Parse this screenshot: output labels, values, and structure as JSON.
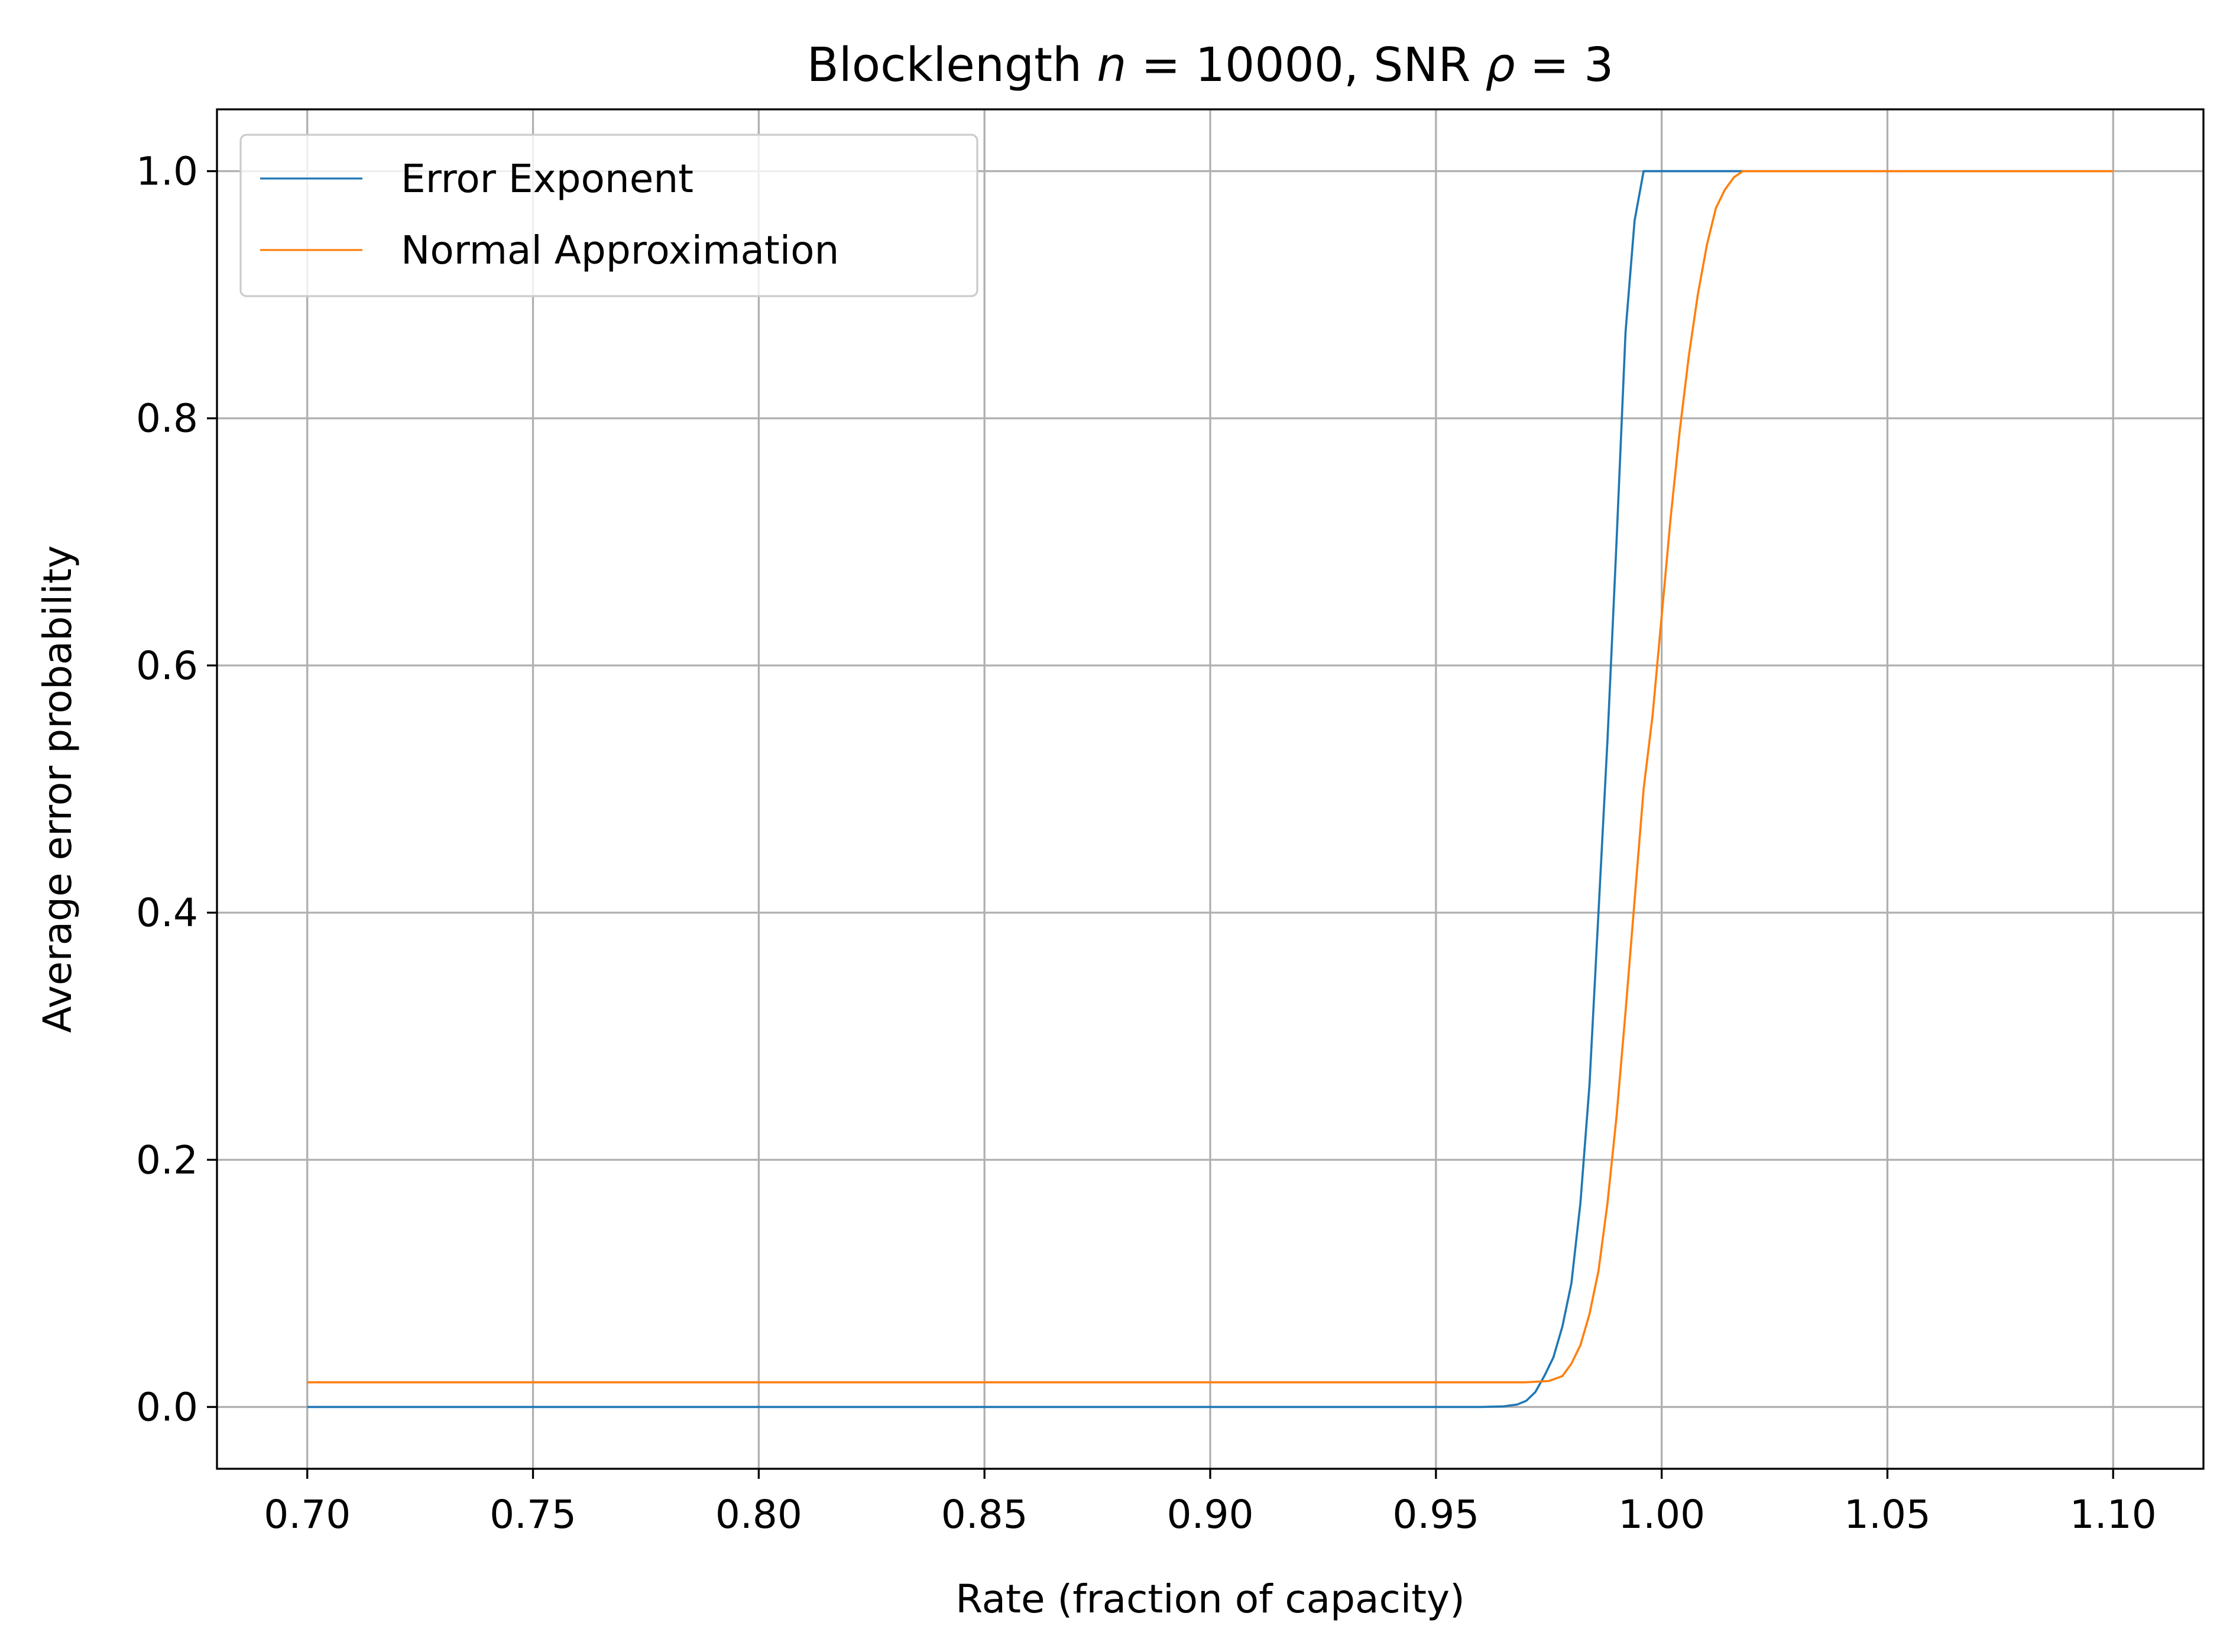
{
  "chart_data": {
    "type": "line",
    "title": "Blocklength n = 10000, SNR ρ = 3",
    "title_parts": {
      "prefix": "Blocklength ",
      "n_symbol": "n",
      "middle": " = 10000, SNR ",
      "rho_symbol": "ρ",
      "suffix": " = 3"
    },
    "xlabel": "Rate (fraction of capacity)",
    "ylabel": "Average error probability",
    "xlim": [
      0.68,
      1.12
    ],
    "ylim": [
      -0.05,
      1.05
    ],
    "x_ticks": [
      0.7,
      0.75,
      0.8,
      0.85,
      0.9,
      0.95,
      1.0,
      1.05,
      1.1
    ],
    "x_tick_labels": [
      "0.70",
      "0.75",
      "0.80",
      "0.85",
      "0.90",
      "0.95",
      "1.00",
      "1.05",
      "1.10"
    ],
    "y_ticks": [
      0.0,
      0.2,
      0.4,
      0.6,
      0.8,
      1.0
    ],
    "y_tick_labels": [
      "0.0",
      "0.2",
      "0.4",
      "0.6",
      "0.8",
      "1.0"
    ],
    "grid": true,
    "legend_position": "top-left",
    "series": [
      {
        "name": "Error Exponent",
        "color": "#1f77b4",
        "x": [
          0.7,
          0.96,
          0.965,
          0.968,
          0.97,
          0.972,
          0.974,
          0.976,
          0.978,
          0.98,
          0.982,
          0.984,
          0.986,
          0.988,
          0.99,
          0.992,
          0.994,
          0.996,
          0.998,
          1.0,
          1.002,
          1.018
        ],
        "y": [
          0.0,
          0.0,
          0.0005,
          0.002,
          0.005,
          0.012,
          0.025,
          0.04,
          0.065,
          0.1,
          0.165,
          0.26,
          0.4,
          0.54,
          0.7,
          0.87,
          0.96,
          1.0,
          1.0,
          1.0,
          1.0,
          1.0
        ]
      },
      {
        "name": "Normal Approximation",
        "color": "#ff7f0e",
        "x": [
          0.7,
          0.97,
          0.975,
          0.978,
          0.98,
          0.982,
          0.984,
          0.986,
          0.988,
          0.99,
          0.992,
          0.994,
          0.996,
          0.998,
          1.0,
          1.002,
          1.004,
          1.006,
          1.008,
          1.01,
          1.012,
          1.014,
          1.016,
          1.018,
          1.02,
          1.1
        ],
        "y": [
          0.02,
          0.02,
          0.021,
          0.025,
          0.035,
          0.05,
          0.075,
          0.11,
          0.165,
          0.235,
          0.32,
          0.41,
          0.5,
          0.56,
          0.64,
          0.72,
          0.79,
          0.85,
          0.9,
          0.94,
          0.97,
          0.985,
          0.995,
          1.0,
          1.0,
          1.0
        ]
      }
    ]
  }
}
